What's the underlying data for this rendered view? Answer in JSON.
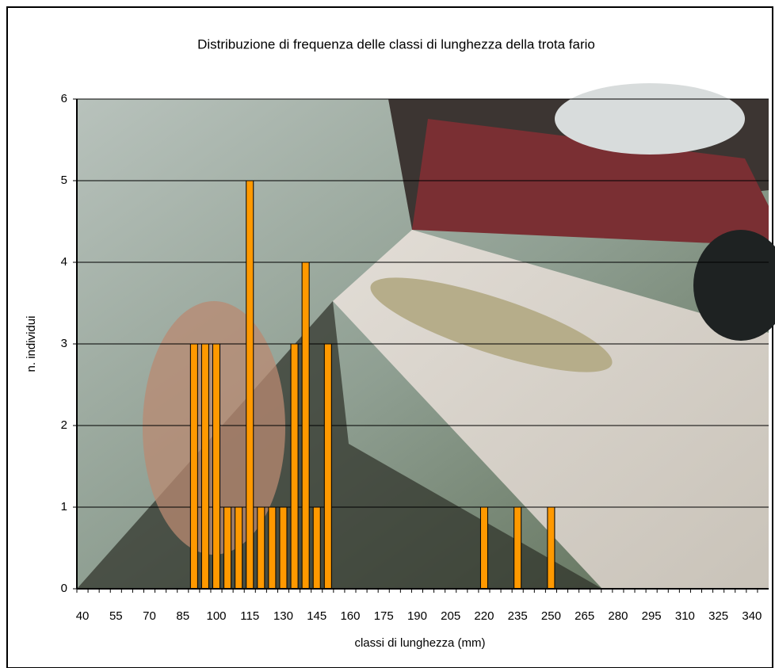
{
  "chart_data": {
    "type": "bar",
    "title": "Distribuzione di frequenza delle classi di lunghezza della trota fario",
    "xlabel": "classi di lunghezza (mm)",
    "ylabel": "n. individui",
    "categories": [
      40,
      null,
      null,
      55,
      null,
      null,
      70,
      null,
      null,
      85,
      null,
      null,
      100,
      null,
      null,
      115,
      null,
      null,
      130,
      null,
      null,
      145,
      null,
      null,
      160,
      null,
      null,
      175,
      null,
      null,
      190,
      null,
      null,
      205,
      null,
      null,
      220,
      null,
      null,
      235,
      null,
      null,
      250,
      null,
      null,
      265,
      null,
      null,
      280,
      null,
      null,
      295,
      null,
      null,
      310,
      null,
      null,
      325,
      null,
      null,
      340,
      null
    ],
    "values": [
      0,
      0,
      0,
      0,
      0,
      0,
      0,
      0,
      0,
      0,
      3,
      3,
      3,
      1,
      1,
      5,
      1,
      1,
      1,
      3,
      4,
      1,
      3,
      0,
      0,
      0,
      0,
      0,
      0,
      0,
      0,
      0,
      0,
      0,
      0,
      0,
      1,
      0,
      0,
      1,
      0,
      0,
      1,
      0,
      0,
      0,
      0,
      0,
      0,
      0,
      0,
      0,
      0,
      0,
      0,
      0,
      0,
      0,
      0,
      0,
      0,
      0
    ],
    "color": "#ff9900",
    "ylim": [
      0,
      6
    ],
    "yticks": [
      0,
      1,
      2,
      3,
      4,
      5,
      6
    ],
    "grid": true
  }
}
